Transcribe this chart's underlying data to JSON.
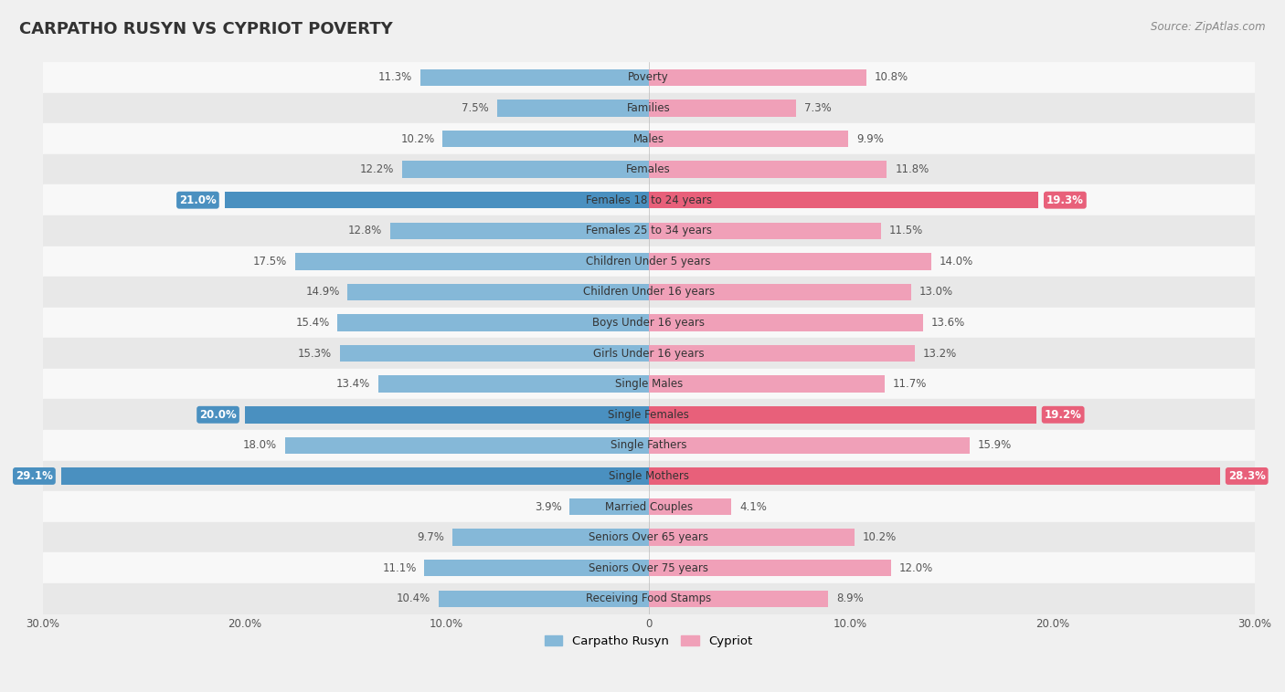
{
  "title": "CARPATHO RUSYN VS CYPRIOT POVERTY",
  "source": "Source: ZipAtlas.com",
  "categories": [
    "Poverty",
    "Families",
    "Males",
    "Females",
    "Females 18 to 24 years",
    "Females 25 to 34 years",
    "Children Under 5 years",
    "Children Under 16 years",
    "Boys Under 16 years",
    "Girls Under 16 years",
    "Single Males",
    "Single Females",
    "Single Fathers",
    "Single Mothers",
    "Married Couples",
    "Seniors Over 65 years",
    "Seniors Over 75 years",
    "Receiving Food Stamps"
  ],
  "carpatho_rusyn": [
    11.3,
    7.5,
    10.2,
    12.2,
    21.0,
    12.8,
    17.5,
    14.9,
    15.4,
    15.3,
    13.4,
    20.0,
    18.0,
    29.1,
    3.9,
    9.7,
    11.1,
    10.4
  ],
  "cypriot": [
    10.8,
    7.3,
    9.9,
    11.8,
    19.3,
    11.5,
    14.0,
    13.0,
    13.6,
    13.2,
    11.7,
    19.2,
    15.9,
    28.3,
    4.1,
    10.2,
    12.0,
    8.9
  ],
  "color_rusyn": "#85b8d8",
  "color_cypriot": "#f0a0b8",
  "color_rusyn_highlight": "#4a90c0",
  "color_cypriot_highlight": "#e8607a",
  "highlight_rows": [
    4,
    11,
    13
  ],
  "xlim": 30.0,
  "background_color": "#f0f0f0",
  "row_bg_light": "#f8f8f8",
  "row_bg_dark": "#e8e8e8",
  "tick_positions": [
    -30,
    -20,
    -10,
    0,
    10,
    20,
    30
  ],
  "tick_labels": [
    "30.0%",
    "20.0%",
    "10.0%",
    "0",
    "10.0%",
    "20.0%",
    "30.0%"
  ]
}
